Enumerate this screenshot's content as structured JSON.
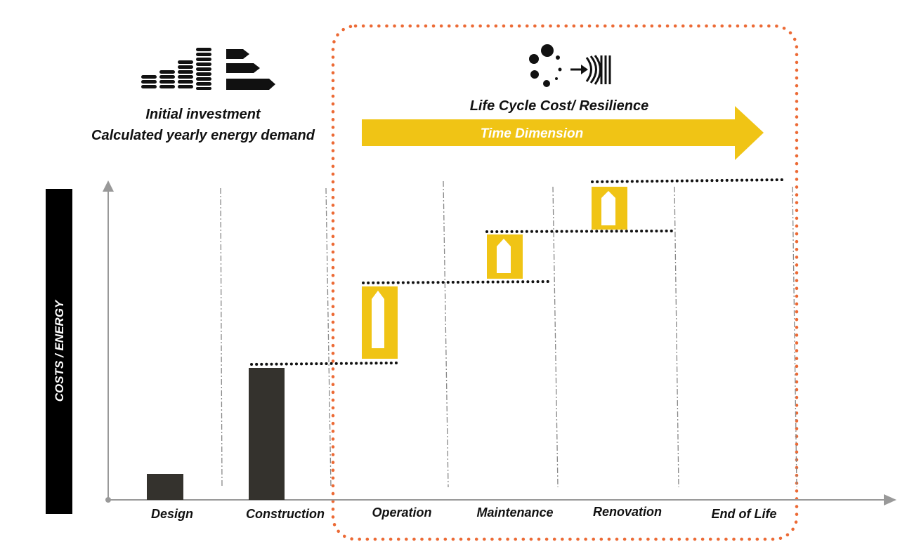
{
  "header_left": {
    "line1": "Initial investment",
    "line2": "Calculated yearly energy demand"
  },
  "header_right": {
    "title": "Life Cycle Cost/ Resilience",
    "arrow_label": "Time Dimension"
  },
  "y_axis_label": "COSTS / ENERGY",
  "phases": [
    "Design",
    "Construction",
    "Operation",
    "Maintenance",
    "Renovation",
    "End of Life"
  ],
  "colors": {
    "bar": "#34322d",
    "accent": "#f0c415",
    "frame": "#ec6a35",
    "axis": "#999999",
    "text": "#111111"
  },
  "icons": {
    "left": [
      "coins-stack-icon",
      "energy-label-icon"
    ],
    "right": [
      "cycle-dots-icon",
      "resilience-arrow-icon"
    ]
  }
}
